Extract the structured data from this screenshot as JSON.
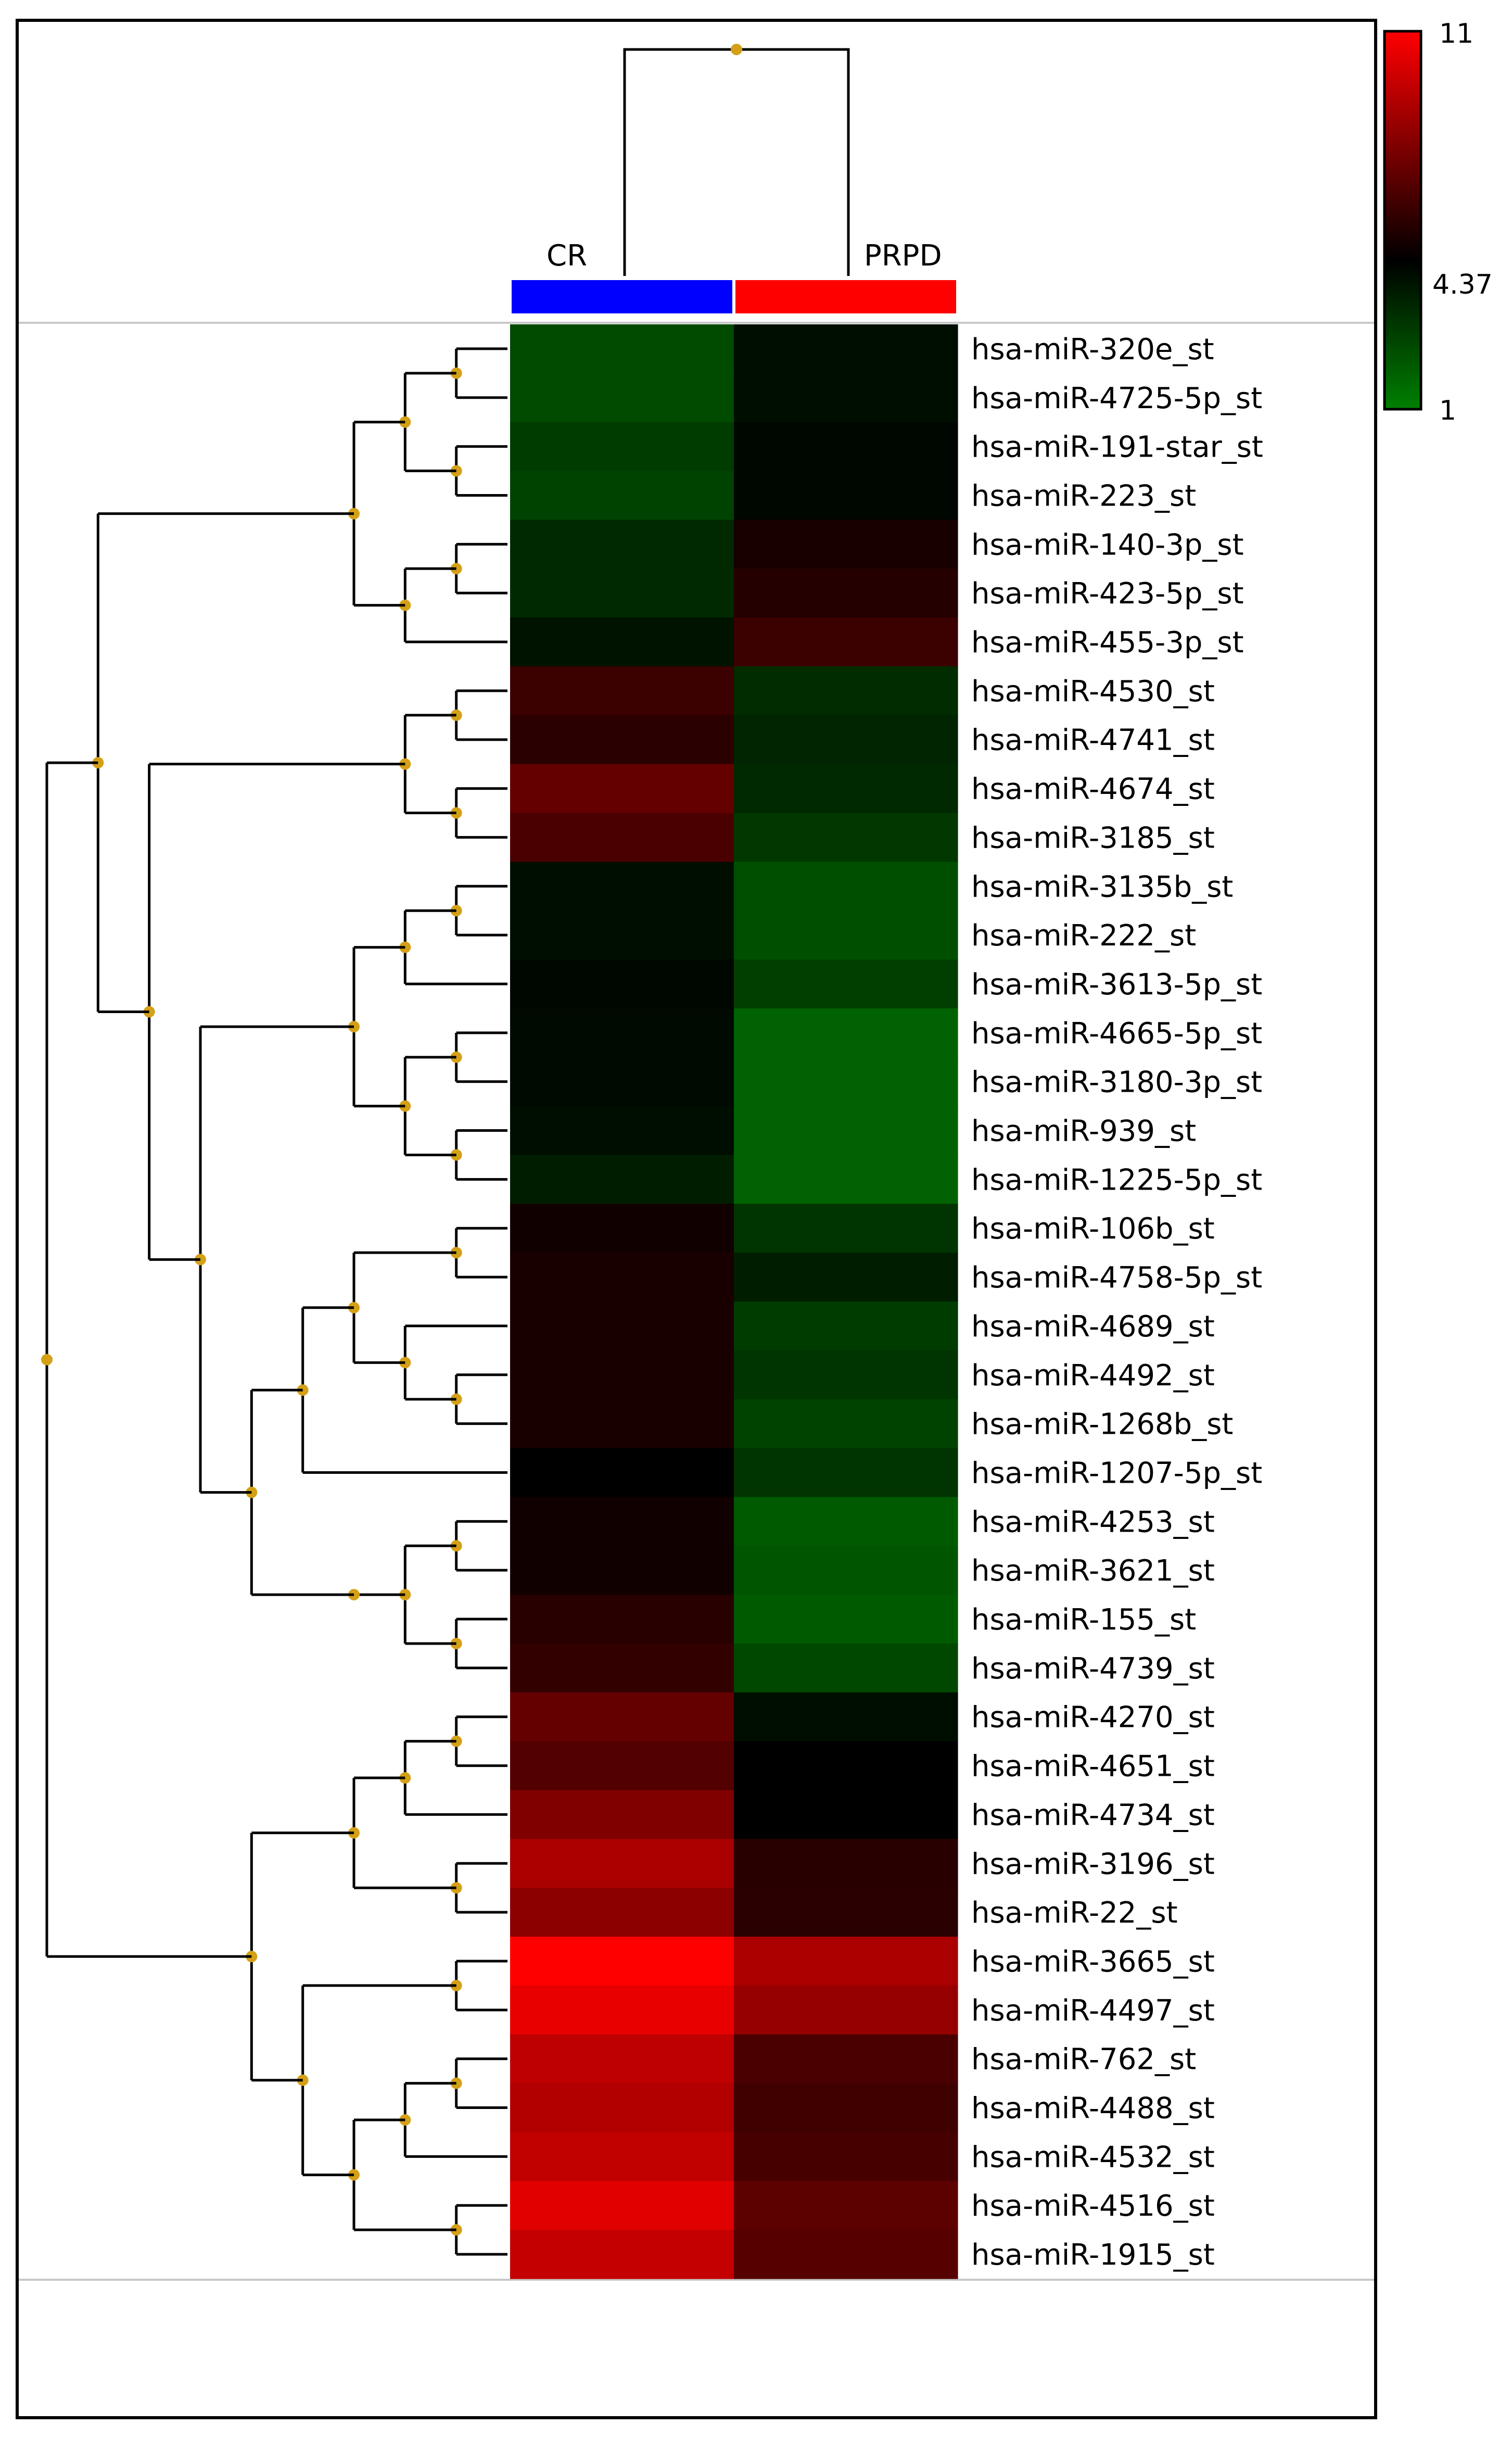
{
  "chart_data": {
    "type": "heatmap",
    "title": "",
    "columns": [
      "CR",
      "PRPD"
    ],
    "rows": [
      "hsa-miR-320e_st",
      "hsa-miR-4725-5p_st",
      "hsa-miR-191-star_st",
      "hsa-miR-223_st",
      "hsa-miR-140-3p_st",
      "hsa-miR-423-5p_st",
      "hsa-miR-455-3p_st",
      "hsa-miR-4530_st",
      "hsa-miR-4741_st",
      "hsa-miR-4674_st",
      "hsa-miR-3185_st",
      "hsa-miR-3135b_st",
      "hsa-miR-222_st",
      "hsa-miR-3613-5p_st",
      "hsa-miR-4665-5p_st",
      "hsa-miR-3180-3p_st",
      "hsa-miR-939_st",
      "hsa-miR-1225-5p_st",
      "hsa-miR-106b_st",
      "hsa-miR-4758-5p_st",
      "hsa-miR-4689_st",
      "hsa-miR-4492_st",
      "hsa-miR-1268b_st",
      "hsa-miR-1207-5p_st",
      "hsa-miR-4253_st",
      "hsa-miR-3621_st",
      "hsa-miR-155_st",
      "hsa-miR-4739_st",
      "hsa-miR-4270_st",
      "hsa-miR-4651_st",
      "hsa-miR-4734_st",
      "hsa-miR-3196_st",
      "hsa-miR-22_st",
      "hsa-miR-3665_st",
      "hsa-miR-4497_st",
      "hsa-miR-762_st",
      "hsa-miR-4488_st",
      "hsa-miR-4532_st",
      "hsa-miR-4516_st",
      "hsa-miR-1915_st"
    ],
    "values": [
      [
        2.4,
        4.0
      ],
      [
        2.4,
        4.0
      ],
      [
        2.8,
        4.2
      ],
      [
        2.6,
        4.2
      ],
      [
        3.3,
        5.0
      ],
      [
        3.3,
        5.3
      ],
      [
        3.9,
        5.9
      ],
      [
        5.9,
        3.2
      ],
      [
        5.5,
        3.4
      ],
      [
        7.0,
        3.3
      ],
      [
        6.3,
        2.9
      ],
      [
        4.0,
        2.3
      ],
      [
        4.0,
        2.3
      ],
      [
        4.2,
        2.7
      ],
      [
        4.1,
        1.8
      ],
      [
        4.1,
        1.8
      ],
      [
        4.0,
        1.8
      ],
      [
        3.6,
        1.8
      ],
      [
        4.8,
        3.0
      ],
      [
        5.0,
        3.6
      ],
      [
        5.0,
        2.8
      ],
      [
        5.0,
        3.0
      ],
      [
        5.0,
        2.6
      ],
      [
        4.4,
        3.0
      ],
      [
        4.8,
        2.0
      ],
      [
        4.8,
        2.1
      ],
      [
        5.4,
        2.0
      ],
      [
        5.7,
        2.5
      ],
      [
        7.0,
        4.0
      ],
      [
        6.5,
        4.4
      ],
      [
        7.7,
        4.4
      ],
      [
        8.8,
        5.4
      ],
      [
        8.0,
        5.5
      ],
      [
        11.0,
        8.8
      ],
      [
        10.4,
        8.3
      ],
      [
        9.3,
        6.3
      ],
      [
        9.0,
        6.0
      ],
      [
        9.4,
        6.2
      ],
      [
        10.2,
        6.8
      ],
      [
        9.5,
        6.6
      ]
    ],
    "group_bar_colors": [
      "#0000ff",
      "#ff0000"
    ],
    "scale": {
      "min": 1,
      "mid": 4.37,
      "max": 11,
      "labels": [
        "11",
        "4.37",
        "1"
      ]
    },
    "colors": {
      "low": "#008000",
      "mid": "#000000",
      "high": "#ff0000"
    },
    "node_color": "#d4a017",
    "row_tree": "(((((0,1),(2,3)),((4,5),6)),(((7,8),(9,10)),((((11,12),13),((14,15),(16,17))),((((18,19),(20,(21,22))),23),(((24,25),(26,27))))))),((((28,29),30),(31,32)),((33,34),(((35,36),37),(38,39)))))",
    "col_tree": "(CR,PRPD)"
  }
}
